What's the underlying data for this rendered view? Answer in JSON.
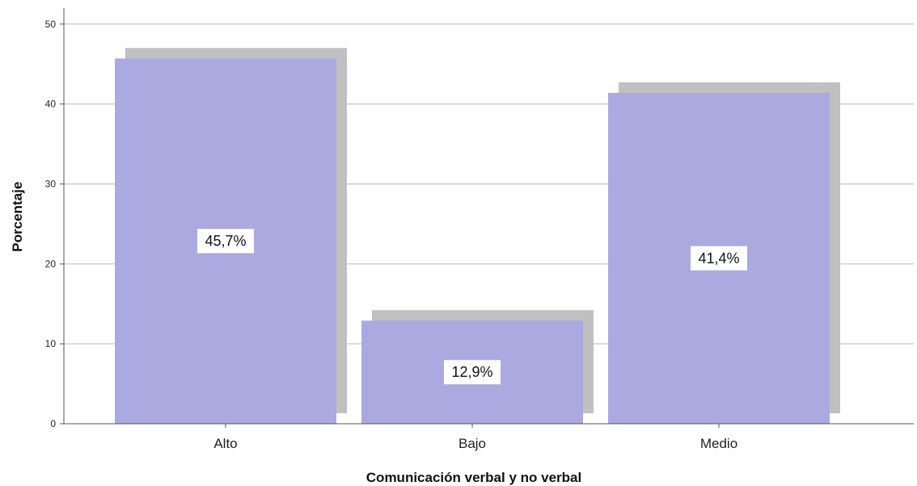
{
  "chart_data": {
    "type": "bar",
    "categories": [
      "Alto",
      "Bajo",
      "Medio"
    ],
    "values": [
      45.7,
      12.9,
      41.4
    ],
    "data_labels": [
      "45,7%",
      "12,9%",
      "41,4%"
    ],
    "xlabel": "Comunicación verbal y no verbal",
    "ylabel": "Porcentaje",
    "ylim": [
      0,
      52
    ],
    "yticks": [
      0,
      10,
      20,
      30,
      40,
      50
    ],
    "grid": true,
    "colors": {
      "bar": "#aaaae0",
      "shadow": "#c0c0c0",
      "grid": "#b8b8b8",
      "axis": "#555555"
    }
  }
}
